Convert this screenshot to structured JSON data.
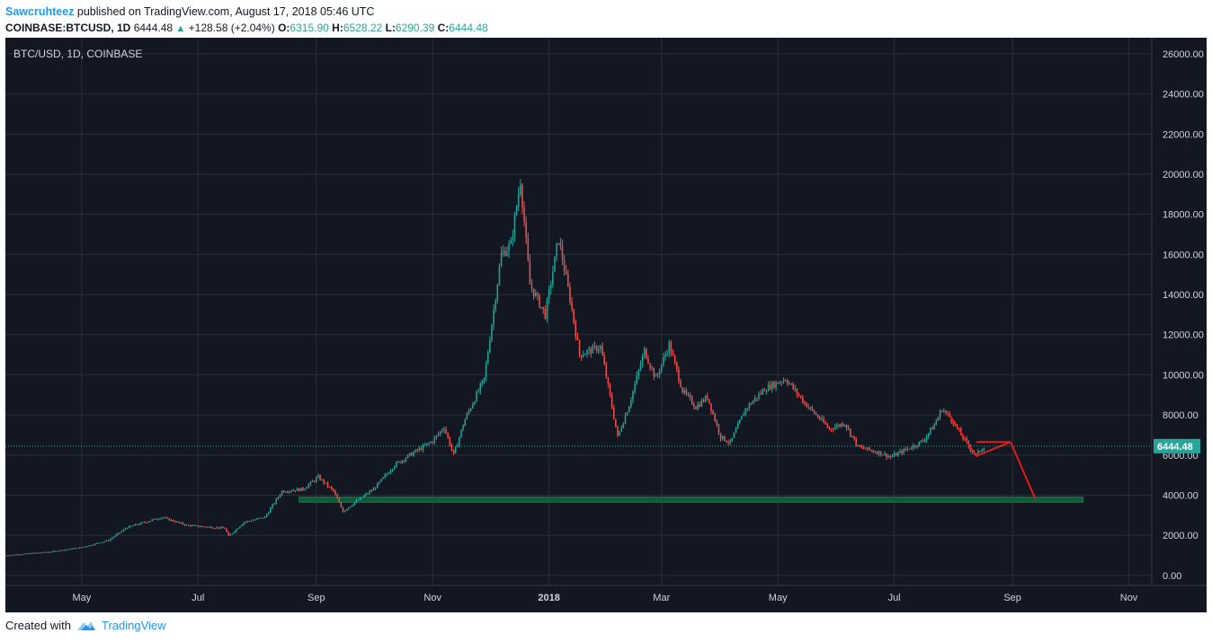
{
  "header": {
    "author": "Sawcruhteez",
    "published": " published on TradingView.com, August 17, 2018 05:46 UTC",
    "symbol": "COINBASE:BTCUSD, 1D",
    "last": "6444.48",
    "up_arrow": "▲",
    "change": "+128.58 (+2.04%)",
    "o_label": "O:",
    "o": "6315.90",
    "h_label": "H:",
    "h": "6528.22",
    "l_label": "L:",
    "l": "6290.39",
    "c_label": "C:",
    "c": "6444.48"
  },
  "footer": {
    "created_with": "Created with",
    "brand": "TradingView"
  },
  "colors": {
    "background": "#131722",
    "up": "#26a69a",
    "down": "#ef5350",
    "price_line": "#26a69a",
    "support_zone": "#0d5c36",
    "drawing": "#e21b1b",
    "axis_text": "#d1d4dc"
  },
  "chart_data": {
    "type": "candlestick",
    "title": "BTC/USD, 1D, COINBASE",
    "y_ticks": [
      "0.00",
      "2000.00",
      "4000.00",
      "6000.00",
      "8000.00",
      "10000.00",
      "12000.00",
      "14000.00",
      "16000.00",
      "18000.00",
      "20000.00",
      "22000.00",
      "24000.00",
      "26000.00"
    ],
    "ylim": [
      -500,
      26800
    ],
    "x_ticks": [
      {
        "date": "2017-05-01",
        "label": "May",
        "bold": false
      },
      {
        "date": "2017-07-01",
        "label": "Jul",
        "bold": false
      },
      {
        "date": "2017-09-01",
        "label": "Sep",
        "bold": false
      },
      {
        "date": "2017-11-01",
        "label": "Nov",
        "bold": false
      },
      {
        "date": "2018-01-01",
        "label": "2018",
        "bold": true
      },
      {
        "date": "2018-03-01",
        "label": "Mar",
        "bold": false
      },
      {
        "date": "2018-05-01",
        "label": "May",
        "bold": false
      },
      {
        "date": "2018-07-01",
        "label": "Jul",
        "bold": false
      },
      {
        "date": "2018-09-01",
        "label": "Sep",
        "bold": false
      },
      {
        "date": "2018-11-01",
        "label": "Nov",
        "bold": false
      }
    ],
    "x_range": [
      "2017-03-22",
      "2018-11-13"
    ],
    "current_price": 6444.48,
    "current_price_label": "6444.48",
    "price_path": [
      [
        "2017-03-22",
        1000
      ],
      [
        "2017-04-15",
        1180
      ],
      [
        "2017-05-01",
        1400
      ],
      [
        "2017-05-15",
        1750
      ],
      [
        "2017-05-25",
        2400
      ],
      [
        "2017-06-12",
        2900
      ],
      [
        "2017-06-25",
        2500
      ],
      [
        "2017-07-15",
        2350
      ],
      [
        "2017-07-17",
        1950
      ],
      [
        "2017-07-25",
        2650
      ],
      [
        "2017-08-05",
        2900
      ],
      [
        "2017-08-14",
        4200
      ],
      [
        "2017-08-25",
        4300
      ],
      [
        "2017-09-02",
        4900
      ],
      [
        "2017-09-10",
        4200
      ],
      [
        "2017-09-15",
        3200
      ],
      [
        "2017-09-22",
        3700
      ],
      [
        "2017-10-01",
        4300
      ],
      [
        "2017-10-12",
        5500
      ],
      [
        "2017-10-20",
        6000
      ],
      [
        "2017-11-01",
        6700
      ],
      [
        "2017-11-07",
        7400
      ],
      [
        "2017-11-12",
        6000
      ],
      [
        "2017-11-18",
        7800
      ],
      [
        "2017-11-28",
        9800
      ],
      [
        "2017-12-07",
        16000
      ],
      [
        "2017-12-12",
        16500
      ],
      [
        "2017-12-17",
        19700
      ],
      [
        "2017-12-22",
        14500
      ],
      [
        "2017-12-30",
        13000
      ],
      [
        "2018-01-06",
        16800
      ],
      [
        "2018-01-12",
        13800
      ],
      [
        "2018-01-17",
        11000
      ],
      [
        "2018-01-28",
        11400
      ],
      [
        "2018-02-06",
        6900
      ],
      [
        "2018-02-12",
        8500
      ],
      [
        "2018-02-20",
        11200
      ],
      [
        "2018-02-26",
        9800
      ],
      [
        "2018-03-05",
        11500
      ],
      [
        "2018-03-12",
        9200
      ],
      [
        "2018-03-19",
        8400
      ],
      [
        "2018-03-25",
        8900
      ],
      [
        "2018-04-01",
        6900
      ],
      [
        "2018-04-06",
        6600
      ],
      [
        "2018-04-14",
        8300
      ],
      [
        "2018-04-24",
        9300
      ],
      [
        "2018-05-05",
        9800
      ],
      [
        "2018-05-15",
        8600
      ],
      [
        "2018-05-28",
        7300
      ],
      [
        "2018-06-05",
        7600
      ],
      [
        "2018-06-12",
        6400
      ],
      [
        "2018-06-24",
        6100
      ],
      [
        "2018-06-29",
        5900
      ],
      [
        "2018-07-10",
        6400
      ],
      [
        "2018-07-16",
        6700
      ],
      [
        "2018-07-22",
        7500
      ],
      [
        "2018-07-26",
        8300
      ],
      [
        "2018-07-31",
        7800
      ],
      [
        "2018-08-05",
        7000
      ],
      [
        "2018-08-10",
        6300
      ],
      [
        "2018-08-13",
        6000
      ],
      [
        "2018-08-17",
        6444
      ]
    ],
    "support_zone": {
      "start": "2017-08-23",
      "end": "2018-10-08",
      "low": 3650,
      "high": 3900
    },
    "annotation_lines": [
      [
        [
          "2018-07-30",
          8000
        ],
        [
          "2018-08-13",
          5950
        ],
        [
          "2018-08-31",
          6650
        ]
      ],
      [
        [
          "2018-08-13",
          6650
        ],
        [
          "2018-08-31",
          6650
        ]
      ],
      [
        [
          "2018-08-31",
          6650
        ],
        [
          "2018-09-13",
          3800
        ]
      ]
    ]
  }
}
